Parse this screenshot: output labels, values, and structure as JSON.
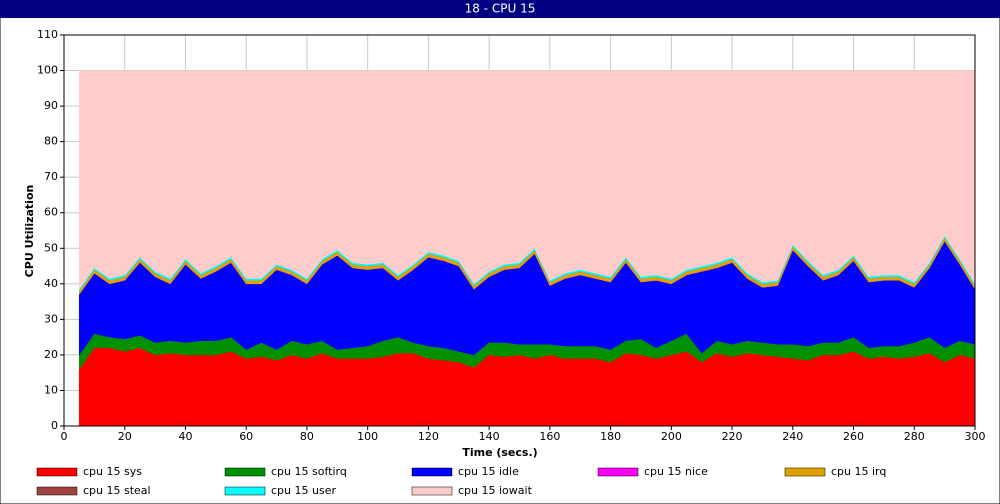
{
  "chart_data": {
    "type": "stacked-area",
    "title": "18 - CPU 15",
    "xlabel": "Time (secs.)",
    "ylabel": "CPU Utilization",
    "xlim": [
      0,
      300
    ],
    "ylim": [
      0,
      110
    ],
    "xticks": [
      0,
      20,
      40,
      60,
      80,
      100,
      120,
      140,
      160,
      180,
      200,
      220,
      240,
      260,
      280,
      300
    ],
    "yticks": [
      0,
      10,
      20,
      30,
      40,
      50,
      60,
      70,
      80,
      90,
      100,
      110
    ],
    "grid": true,
    "legend": "bottom",
    "x": [
      5,
      10,
      15,
      20,
      25,
      30,
      35,
      40,
      45,
      50,
      55,
      60,
      65,
      70,
      75,
      80,
      85,
      90,
      95,
      100,
      105,
      110,
      115,
      120,
      125,
      130,
      135,
      140,
      145,
      150,
      155,
      160,
      165,
      170,
      175,
      180,
      185,
      190,
      195,
      200,
      205,
      210,
      215,
      220,
      225,
      230,
      235,
      240,
      245,
      250,
      255,
      260,
      265,
      270,
      275,
      280,
      285,
      290,
      295,
      300
    ],
    "series": [
      {
        "name": "cpu 15 sys",
        "color": "#ff0000",
        "values": [
          16,
          22,
          22,
          21,
          22,
          20,
          20.5,
          20,
          20,
          20,
          21,
          19,
          19.5,
          18.5,
          20,
          19,
          20.5,
          19,
          19,
          19,
          19.5,
          20.5,
          20.5,
          19,
          18.5,
          18,
          16.5,
          20,
          19.5,
          20,
          19,
          20,
          19,
          19,
          19,
          18,
          20.5,
          20,
          19,
          20,
          21,
          18,
          20.5,
          19.5,
          20.5,
          20,
          19.5,
          19,
          18.5,
          20,
          20,
          21,
          19,
          19.5,
          19,
          19.5,
          20.5,
          18,
          20,
          19
        ]
      },
      {
        "name": "cpu 15 softirq",
        "color": "#009000",
        "values": [
          4,
          4,
          3,
          3.5,
          3.5,
          3.5,
          3.5,
          3.5,
          4,
          4,
          4,
          2.5,
          4,
          3,
          4,
          4,
          3.5,
          2.5,
          3,
          3.5,
          4.5,
          4.5,
          3,
          3.5,
          3.5,
          3,
          3.5,
          3.5,
          4,
          3,
          4,
          3,
          3.5,
          3.5,
          3.5,
          3.5,
          3.5,
          4.5,
          3,
          4,
          5,
          2.5,
          3.5,
          3.5,
          3.5,
          3.5,
          3.5,
          4,
          4,
          3.5,
          3.5,
          4,
          3,
          3,
          3.5,
          4,
          4.5,
          4,
          4,
          4
        ]
      },
      {
        "name": "cpu 15 idle",
        "color": "#0000ff",
        "values": [
          17,
          17,
          15,
          16.5,
          20.5,
          18.5,
          16,
          22,
          17.5,
          19.5,
          21,
          18.5,
          16.5,
          22.5,
          18.5,
          17,
          21.5,
          26.5,
          22.5,
          21.5,
          20.5,
          16,
          20.5,
          25,
          24.5,
          24,
          18.5,
          18.5,
          20.5,
          21.5,
          25.5,
          16.5,
          19,
          20,
          19,
          19,
          22,
          16,
          19,
          16,
          16.5,
          23,
          20.5,
          23,
          17.5,
          15.5,
          16.5,
          26.5,
          22.5,
          17.5,
          19,
          21.5,
          18.5,
          18.5,
          18.5,
          15.5,
          19.5,
          30,
          21.5,
          15.5
        ]
      },
      {
        "name": "cpu 15 nice",
        "color": "#ff00ff",
        "values": [
          0,
          0,
          0,
          0,
          0,
          0,
          0,
          0,
          0,
          0,
          0,
          0,
          0,
          0,
          0,
          0,
          0,
          0,
          0,
          0,
          0,
          0,
          0,
          0,
          0,
          0,
          0,
          0,
          0,
          0,
          0,
          0,
          0,
          0,
          0,
          0,
          0,
          0,
          0,
          0,
          0,
          0,
          0,
          0,
          0,
          0,
          0,
          0,
          0,
          0,
          0,
          0,
          0,
          0,
          0,
          0,
          0,
          0,
          0,
          0
        ]
      },
      {
        "name": "cpu 15 irq",
        "color": "#e0a000",
        "values": [
          1,
          1,
          1,
          1,
          1,
          1,
          1,
          1,
          1,
          1,
          1,
          1,
          1,
          1,
          1,
          1,
          1,
          1,
          1,
          1,
          1,
          1,
          1,
          1,
          1,
          1,
          1,
          1,
          1,
          1,
          1,
          1,
          1,
          1,
          1,
          1,
          1,
          1,
          1,
          1,
          1,
          1,
          1,
          1,
          1,
          1,
          1,
          1,
          1,
          1,
          1,
          1,
          1,
          1,
          1,
          1,
          1,
          1,
          1,
          1
        ]
      },
      {
        "name": "cpu 15 steal",
        "color": "#a04040",
        "values": [
          0,
          0,
          0,
          0,
          0,
          0,
          0,
          0,
          0,
          0,
          0,
          0,
          0,
          0,
          0,
          0,
          0,
          0,
          0,
          0,
          0,
          0,
          0,
          0,
          0,
          0,
          0,
          0,
          0,
          0,
          0,
          0,
          0,
          0,
          0,
          0,
          0,
          0,
          0,
          0,
          0,
          0,
          0,
          0,
          0,
          0,
          0,
          0,
          0,
          0,
          0,
          0,
          0,
          0,
          0,
          0,
          0,
          0,
          0,
          0
        ]
      },
      {
        "name": "cpu 15 user",
        "color": "#00ffff",
        "values": [
          0.5,
          0.5,
          0.5,
          0.5,
          0.5,
          0.5,
          0.5,
          0.5,
          0.5,
          0.5,
          0.5,
          0.5,
          0.5,
          0.5,
          0.5,
          0.5,
          0.5,
          0.5,
          0.5,
          0.5,
          0.5,
          0.5,
          0.5,
          0.5,
          0.5,
          0.5,
          0.5,
          0.5,
          0.5,
          0.5,
          0.5,
          0.5,
          0.5,
          0.5,
          0.5,
          0.5,
          0.5,
          0.5,
          0.5,
          0.5,
          0.5,
          0.5,
          0.5,
          0.5,
          0.5,
          0.5,
          0.5,
          0.5,
          0.5,
          0.5,
          0.5,
          0.5,
          0.5,
          0.5,
          0.5,
          0.5,
          0.5,
          0.5,
          0.5,
          0.5
        ]
      },
      {
        "name": "cpu 15 iowait",
        "color": "#ffcccc",
        "values": [
          61.5,
          55.5,
          58.5,
          57.5,
          52.5,
          56.5,
          58.5,
          53,
          57,
          55,
          52.5,
          58.5,
          58.5,
          54.5,
          56,
          58.5,
          53,
          50.5,
          54,
          54.5,
          54,
          57.5,
          54.5,
          51,
          52,
          53.5,
          60,
          56.5,
          54.5,
          54,
          50,
          59,
          57,
          56,
          57,
          58,
          52.5,
          58,
          57.5,
          58.5,
          56,
          55,
          54,
          52.5,
          57,
          59.5,
          59,
          49,
          53.5,
          57.5,
          56,
          52,
          58,
          57.5,
          57.5,
          59.5,
          54,
          46.5,
          53,
          60
        ]
      }
    ]
  }
}
